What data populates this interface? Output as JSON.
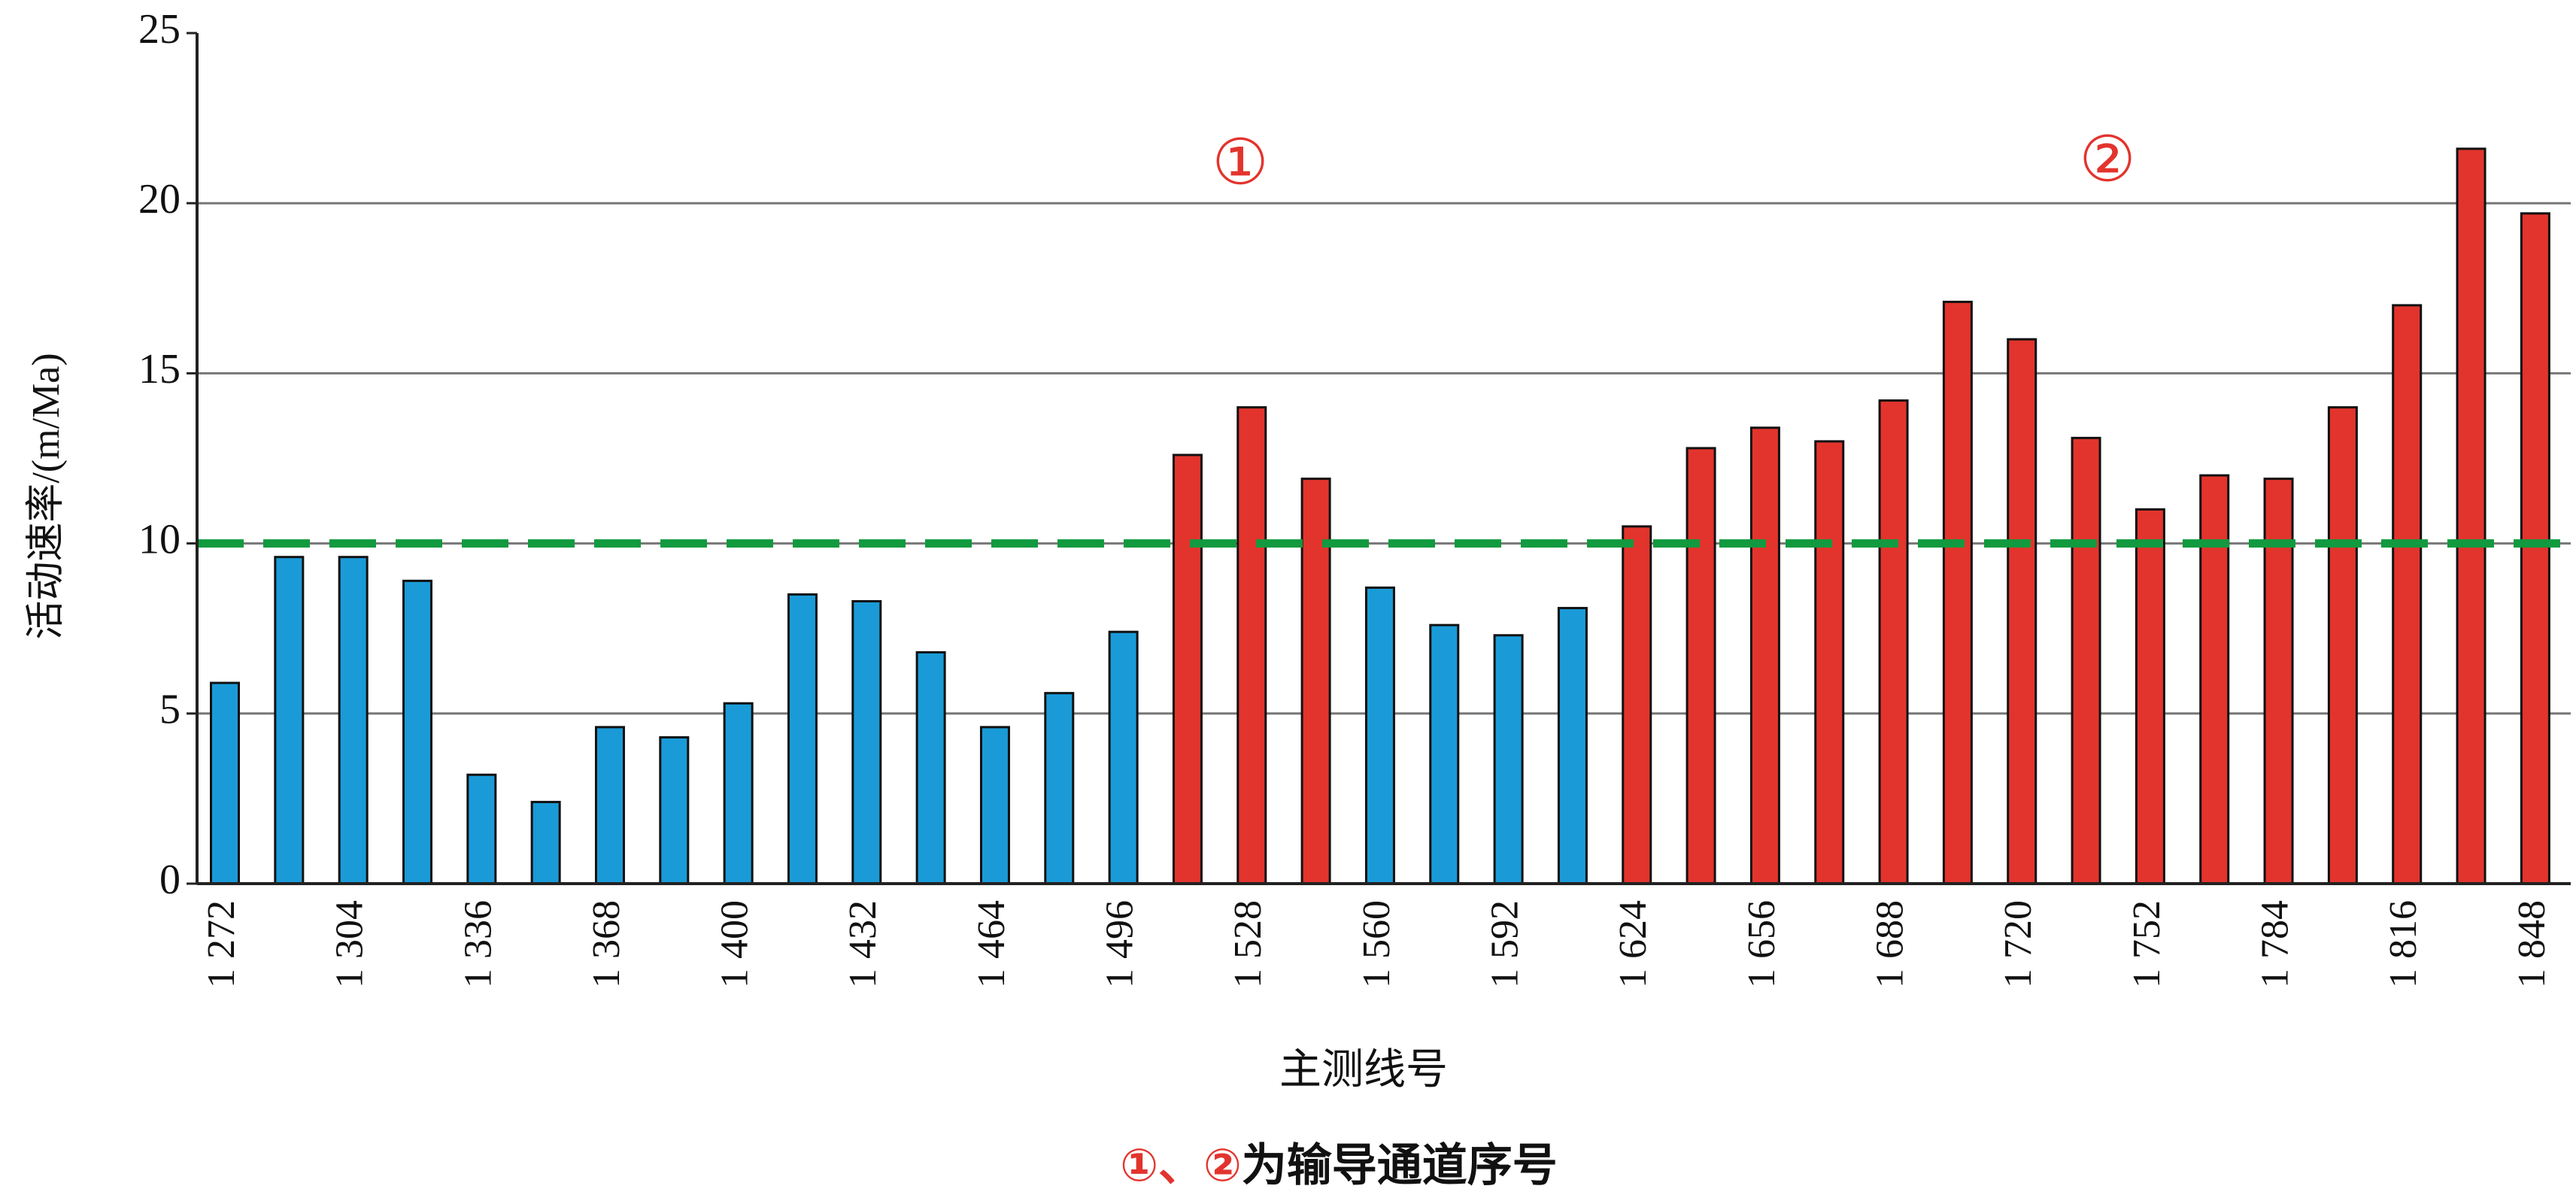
{
  "chart_data": {
    "type": "bar",
    "y_label": "活动速率/(m/Ma)",
    "x_label": "主测线号",
    "categories": [
      "1 272",
      null,
      "1 304",
      null,
      "1 336",
      null,
      "1 368",
      null,
      "1 400",
      null,
      "1 432",
      null,
      "1 464",
      null,
      "1 496",
      null,
      "1 528",
      null,
      "1 560",
      null,
      "1 592",
      null,
      "1 624",
      null,
      "1 656",
      null,
      "1 688",
      null,
      "1 720",
      null,
      "1 752",
      null,
      "1 784",
      null,
      "1 816",
      null,
      "1 848"
    ],
    "values": [
      5.9,
      9.6,
      9.6,
      8.9,
      3.2,
      2.4,
      4.6,
      4.3,
      5.3,
      8.5,
      8.3,
      6.8,
      4.6,
      5.6,
      7.4,
      12.6,
      14.0,
      11.9,
      8.7,
      7.6,
      7.3,
      8.1,
      10.5,
      12.8,
      13.4,
      13.0,
      14.2,
      17.1,
      16.0,
      13.1,
      11.0,
      12.0,
      11.9,
      14.0,
      17.0,
      21.6,
      19.7
    ],
    "colors": [
      "#1a9bd7",
      "#1a9bd7",
      "#1a9bd7",
      "#1a9bd7",
      "#1a9bd7",
      "#1a9bd7",
      "#1a9bd7",
      "#1a9bd7",
      "#1a9bd7",
      "#1a9bd7",
      "#1a9bd7",
      "#1a9bd7",
      "#1a9bd7",
      "#1a9bd7",
      "#1a9bd7",
      "#e2342d",
      "#e2342d",
      "#e2342d",
      "#1a9bd7",
      "#1a9bd7",
      "#1a9bd7",
      "#1a9bd7",
      "#e2342d",
      "#e2342d",
      "#e2342d",
      "#e2342d",
      "#e2342d",
      "#e2342d",
      "#e2342d",
      "#e2342d",
      "#e2342d",
      "#e2342d",
      "#e2342d",
      "#e2342d",
      "#e2342d",
      "#e2342d",
      "#e2342d"
    ],
    "ylim": [
      0,
      25
    ],
    "yticks": [
      0,
      5,
      10,
      15,
      20,
      25
    ],
    "grid": true,
    "threshold": {
      "value": 10,
      "color": "#119a3f"
    },
    "annotations": [
      "①",
      "②"
    ],
    "footnote": {
      "markers": "①、②",
      "text": "为输导通道序号"
    }
  }
}
